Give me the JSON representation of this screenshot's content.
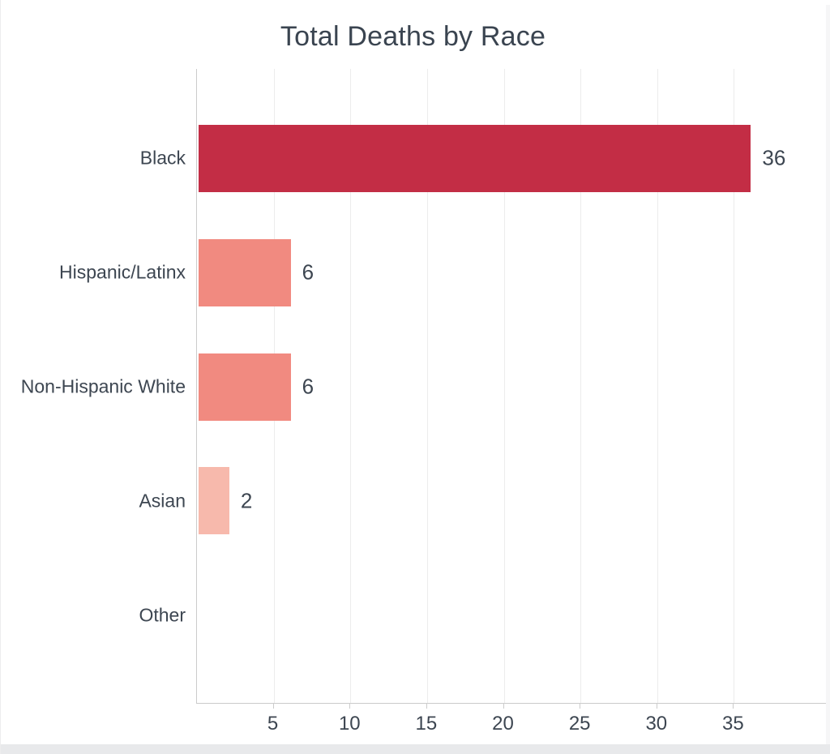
{
  "chart_data": {
    "type": "bar",
    "orientation": "horizontal",
    "title": "Total Deaths by Race",
    "categories": [
      "Black",
      "Hispanic/Latinx",
      "Non-Hispanic White",
      "Asian",
      "Other"
    ],
    "values": [
      36,
      6,
      6,
      2,
      0
    ],
    "bar_colors": [
      "#c32d45",
      "#f18a80",
      "#f18a80",
      "#f7b9ac",
      "#f7b9ac"
    ],
    "value_labels": [
      "36",
      "6",
      "6",
      "2",
      ""
    ],
    "xlabel": "",
    "ylabel": "",
    "xlim": [
      0,
      41
    ],
    "xticks": [
      5,
      10,
      15,
      20,
      25,
      30,
      35
    ],
    "grid": "vertical-only",
    "legend": "none"
  },
  "colors": {
    "title_text": "#3a4450",
    "axis_text": "#3d4651",
    "gridline": "#ececec",
    "axis_line": "#cbcbcb",
    "right_edge_strip": "#f6f6f7",
    "bottom_edge_strip": "#e8e9eb"
  }
}
